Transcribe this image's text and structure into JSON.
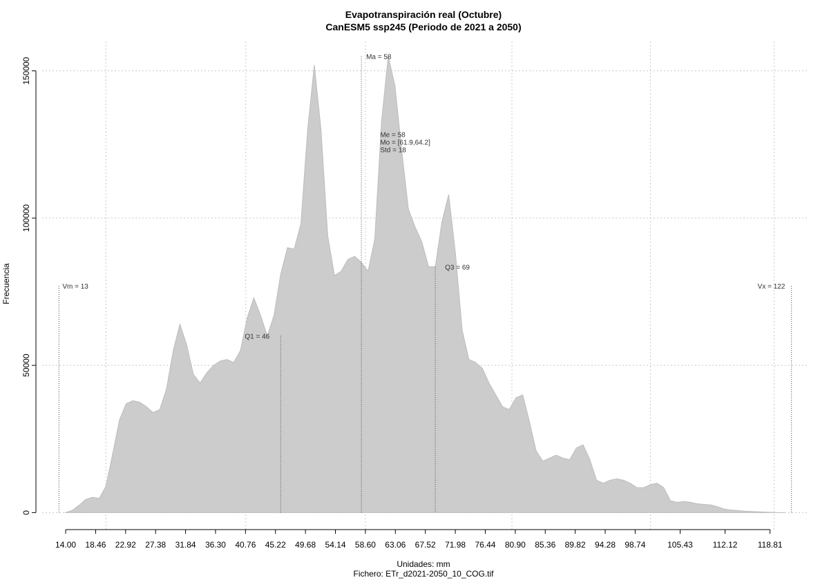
{
  "chart_data": {
    "type": "area",
    "title": "Evapotranspiración real (Octubre)",
    "subtitle": "CanESM5 ssp245 (Periodo de 2021 a 2050)",
    "xlabel": "Unidades: mm",
    "xlabel2": "Fichero: ETr_d2021-2050_10_COG.tif",
    "ylabel": "Frecuencia",
    "xlim": [
      10.5,
      124.5
    ],
    "ylim": [
      -6000,
      160000
    ],
    "grid": true,
    "x_ticks": [
      "14.00",
      "18.46",
      "22.92",
      "27.38",
      "31.84",
      "36.30",
      "40.76",
      "45.22",
      "49.68",
      "54.14",
      "58.60",
      "63.06",
      "67.52",
      "71.98",
      "76.44",
      "80.90",
      "85.36",
      "89.82",
      "94.28",
      "98.74",
      "105.43",
      "112.12",
      "118.81"
    ],
    "x_tick_values": [
      14.0,
      18.46,
      22.92,
      27.38,
      31.84,
      36.3,
      40.76,
      45.22,
      49.68,
      54.14,
      58.6,
      63.06,
      67.52,
      71.98,
      76.44,
      80.9,
      85.36,
      89.82,
      94.28,
      98.74,
      105.43,
      112.12,
      118.81
    ],
    "y_ticks": [
      "0",
      "50000",
      "100000",
      "150000"
    ],
    "y_tick_values": [
      0,
      50000,
      100000,
      150000
    ],
    "x_grid": [
      20.0,
      40.8,
      58.6,
      80.4,
      101.0,
      119.4
    ],
    "series": [
      {
        "color": "#cccccc",
        "x": [
          14.0,
          15.0,
          16.0,
          17.0,
          18.0,
          19.0,
          20.0,
          21.0,
          22.0,
          23.0,
          24.0,
          25.0,
          26.0,
          27.0,
          28.0,
          29.0,
          30.0,
          31.0,
          32.0,
          33.0,
          34.0,
          35.0,
          36.0,
          37.0,
          38.0,
          39.0,
          40.0,
          41.0,
          42.0,
          43.0,
          44.0,
          45.0,
          46.0,
          47.0,
          48.0,
          49.0,
          50.0,
          51.0,
          52.0,
          53.0,
          54.0,
          55.0,
          56.0,
          57.0,
          58.0,
          59.0,
          60.0,
          61.0,
          62.0,
          63.0,
          64.0,
          65.0,
          66.0,
          67.0,
          68.0,
          69.0,
          70.0,
          71.0,
          72.0,
          73.0,
          74.0,
          75.0,
          76.0,
          77.0,
          78.0,
          79.0,
          80.0,
          81.0,
          82.0,
          83.0,
          84.0,
          85.0,
          86.0,
          87.0,
          88.0,
          89.0,
          90.0,
          91.0,
          92.0,
          93.0,
          94.0,
          95.0,
          96.0,
          97.0,
          98.0,
          99.0,
          100.0,
          101.0,
          102.0,
          103.0,
          104.0,
          105.0,
          106.0,
          107.0,
          108.0,
          109.0,
          110.0,
          111.0,
          112.0,
          113.0,
          114.0,
          115.0,
          116.0,
          117.0,
          118.0,
          119.0,
          120.0,
          121.0
        ],
        "y": [
          0,
          800,
          2500,
          4500,
          5200,
          4800,
          9000,
          20000,
          31500,
          37000,
          38000,
          37500,
          36000,
          34000,
          35000,
          42000,
          55000,
          64000,
          57000,
          47000,
          44000,
          47500,
          50000,
          51500,
          52000,
          51000,
          55000,
          66000,
          73000,
          67000,
          60000,
          67000,
          81000,
          90000,
          89500,
          98000,
          130000,
          152000,
          130000,
          94000,
          80500,
          82000,
          86000,
          87000,
          85000,
          82000,
          93000,
          133000,
          155000,
          145000,
          123000,
          103000,
          97000,
          92000,
          83500,
          83500,
          99000,
          108000,
          88000,
          62000,
          52000,
          51000,
          49000,
          44000,
          40000,
          36000,
          35000,
          39000,
          40000,
          31000,
          21000,
          17500,
          18500,
          19500,
          18500,
          18000,
          22000,
          23000,
          18000,
          11000,
          10000,
          11000,
          11500,
          11000,
          10000,
          8500,
          8500,
          9500,
          10000,
          8500,
          4000,
          3500,
          3800,
          3500,
          3000,
          2800,
          2600,
          2000,
          1200,
          900,
          700,
          500,
          400,
          300,
          200,
          100,
          0,
          0
        ]
      }
    ],
    "annotations": {
      "vm": {
        "label": "Vm = 13",
        "x": 13,
        "y": 77000
      },
      "q1": {
        "label": "Q1 = 46",
        "x": 46,
        "y": 60000
      },
      "ma": {
        "label": "Ma = 58",
        "x": 58,
        "y": 155000
      },
      "stats": {
        "me": "Me = 58",
        "mo": "Mo = [61.9,64.2]",
        "std": "Std = 18",
        "x": 60.8,
        "y": 127500
      },
      "q3": {
        "label": "Q3 = 69",
        "x": 69,
        "y": 83500
      },
      "vx": {
        "label": "Vx = 122",
        "x": 122,
        "y": 77000
      }
    }
  }
}
